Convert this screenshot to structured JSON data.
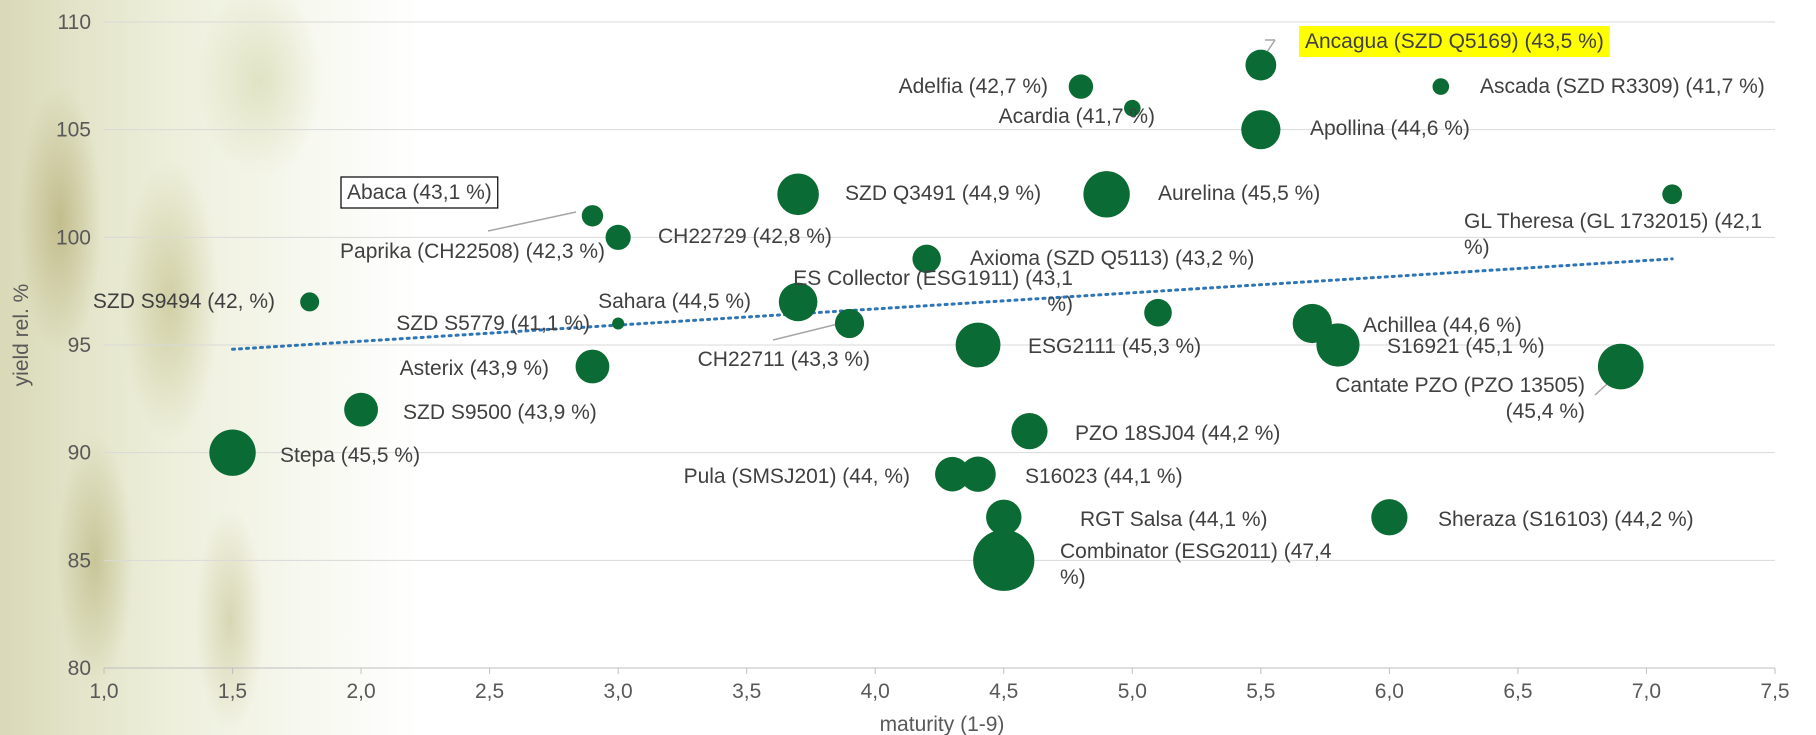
{
  "chart_data": {
    "type": "scatter",
    "variant": "bubble",
    "xlabel": "maturity (1-9)",
    "ylabel": "yield rel. %",
    "xlim": [
      1.0,
      7.5
    ],
    "ylim": [
      80,
      110
    ],
    "x_ticks": [
      "1,0",
      "1,5",
      "2,0",
      "2,5",
      "3,0",
      "3,5",
      "4,0",
      "4,5",
      "5,0",
      "5,5",
      "6,0",
      "6,5",
      "7,0",
      "7,5"
    ],
    "y_ticks": [
      "80",
      "85",
      "90",
      "95",
      "100",
      "105",
      "110"
    ],
    "grid": "horizontal",
    "bubble_color": "#0a6b34",
    "trendline": {
      "type": "linear",
      "style": "dotted",
      "color": "#2e75b6",
      "x": [
        1.5,
        7.1
      ],
      "y": [
        94.8,
        99.0
      ]
    },
    "points": [
      {
        "name": "Ancagua (SZD Q5169) (43,5 %)",
        "x": 5.5,
        "y": 108,
        "size": 43.5
      },
      {
        "name": "Adelfia (42,7 %)",
        "x": 4.8,
        "y": 107,
        "size": 42.7
      },
      {
        "name": "Ascada (SZD R3309) (41,7 %)",
        "x": 6.2,
        "y": 107,
        "size": 41.7
      },
      {
        "name": "Acardia (41,7 %)",
        "x": 5.0,
        "y": 106,
        "size": 41.7
      },
      {
        "name": "Apollina (44,6 %)",
        "x": 5.5,
        "y": 105,
        "size": 44.6
      },
      {
        "name": "Abaca (43,1 %)",
        "x": 2.1,
        "y": 102,
        "size": 43.1
      },
      {
        "name": "SZD Q3491 (44,9 %)",
        "x": 3.7,
        "y": 102,
        "size": 44.9
      },
      {
        "name": "Aurelina (45,5 %)",
        "x": 4.9,
        "y": 102,
        "size": 45.5
      },
      {
        "name": "GL Theresa (GL 1732015) (42,1 %)",
        "x": 7.1,
        "y": 102,
        "size": 42.1
      },
      {
        "name": "Paprika (CH22508) (42,3 %)",
        "x": 2.9,
        "y": 101,
        "size": 42.3
      },
      {
        "name": "CH22729 (42,8 %)",
        "x": 3.0,
        "y": 100,
        "size": 42.8
      },
      {
        "name": "Axioma (SZD Q5113) (43,2 %)",
        "x": 4.2,
        "y": 99,
        "size": 43.2
      },
      {
        "name": "SZD S9494 (42, %)",
        "x": 1.8,
        "y": 97,
        "size": 42.0
      },
      {
        "name": "Sahara (44,5 %)",
        "x": 3.7,
        "y": 97,
        "size": 44.5
      },
      {
        "name": "ES Collector (ESG1911) (43,1 %)",
        "x": 5.1,
        "y": 96.5,
        "size": 43.1
      },
      {
        "name": "SZD S5779 (41,1 %)",
        "x": 3.0,
        "y": 96,
        "size": 41.1
      },
      {
        "name": "CH22711 (43,3 %)",
        "x": 3.9,
        "y": 96,
        "size": 43.3
      },
      {
        "name": "Achillea (44,6 %)",
        "x": 5.7,
        "y": 96,
        "size": 44.6
      },
      {
        "name": "ESG2111 (45,3 %)",
        "x": 4.4,
        "y": 95,
        "size": 45.3
      },
      {
        "name": "S16921 (45,1 %)",
        "x": 5.8,
        "y": 95,
        "size": 45.1
      },
      {
        "name": "Asterix (43,9 %)",
        "x": 2.9,
        "y": 94,
        "size": 43.9
      },
      {
        "name": "Cantate PZO (PZO 13505) (45,4 %)",
        "x": 6.9,
        "y": 94,
        "size": 45.4
      },
      {
        "name": "SZD S9500 (43,9 %)",
        "x": 2.0,
        "y": 92,
        "size": 43.9
      },
      {
        "name": "PZO 18SJ04 (44,2 %)",
        "x": 4.6,
        "y": 91,
        "size": 44.2
      },
      {
        "name": "Stepa (45,5 %)",
        "x": 1.5,
        "y": 90,
        "size": 45.5
      },
      {
        "name": "Pula (SMSJ201) (44, %)",
        "x": 4.3,
        "y": 89,
        "size": 44.0
      },
      {
        "name": "S16023 (44,1 %)",
        "x": 4.4,
        "y": 89,
        "size": 44.1
      },
      {
        "name": "RGT Salsa (44,1 %)",
        "x": 4.5,
        "y": 87,
        "size": 44.1
      },
      {
        "name": "Sheraza (S16103) (44,2 %)",
        "x": 6.0,
        "y": 87,
        "size": 44.2
      },
      {
        "name": "Combinator (ESG2011) (47,4 %)",
        "x": 4.5,
        "y": 85,
        "size": 47.4
      }
    ],
    "labels": [
      {
        "lines": [
          "Ancagua (SZD Q5169) (43,5 %)"
        ],
        "style": "highlight",
        "highlight_color": "#ffff00"
      },
      {
        "lines": [
          "Adelfia (42,7 %)"
        ]
      },
      {
        "lines": [
          "Ascada (SZD R3309) (41,7 %)"
        ]
      },
      {
        "lines": [
          "Acardia (41,7 %)"
        ]
      },
      {
        "lines": [
          "Apollina (44,6 %)"
        ]
      },
      {
        "lines": [
          "Abaca (43,1 %)"
        ],
        "style": "boxed"
      },
      {
        "lines": [
          "SZD Q3491 (44,9 %)"
        ]
      },
      {
        "lines": [
          "Aurelina (45,5 %)"
        ]
      },
      {
        "lines": [
          "GL Theresa (GL 1732015) (42,1",
          "%)"
        ]
      },
      {
        "lines": [
          "Paprika (CH22508) (42,3 %)"
        ]
      },
      {
        "lines": [
          "CH22729 (42,8 %)"
        ]
      },
      {
        "lines": [
          "Axioma (SZD Q5113) (43,2 %)"
        ]
      },
      {
        "lines": [
          "SZD S9494 (42,  %)"
        ]
      },
      {
        "lines": [
          "Sahara (44,5 %)"
        ]
      },
      {
        "lines": [
          "ES Collector (ESG1911) (43,1",
          "%)"
        ]
      },
      {
        "lines": [
          "SZD S5779 (41,1 %)"
        ]
      },
      {
        "lines": [
          "CH22711 (43,3 %)"
        ]
      },
      {
        "lines": [
          "Achillea (44,6 %)"
        ]
      },
      {
        "lines": [
          "ESG2111 (45,3 %)"
        ]
      },
      {
        "lines": [
          "S16921 (45,1 %)"
        ]
      },
      {
        "lines": [
          "Asterix (43,9 %)"
        ]
      },
      {
        "lines": [
          "Cantate PZO (PZO 13505)",
          "(45,4 %)"
        ]
      },
      {
        "lines": [
          "SZD S9500 (43,9 %)"
        ]
      },
      {
        "lines": [
          "PZO 18SJ04 (44,2 %)"
        ]
      },
      {
        "lines": [
          "Stepa (45,5 %)"
        ]
      },
      {
        "lines": [
          "Pula (SMSJ201) (44,  %)"
        ]
      },
      {
        "lines": [
          "S16023 (44,1 %)"
        ]
      },
      {
        "lines": [
          "RGT Salsa (44,1 %)"
        ]
      },
      {
        "lines": [
          "Sheraza (S16103) (44,2 %)"
        ]
      },
      {
        "lines": [
          "Combinator (ESG2011) (47,4",
          "%)"
        ]
      }
    ]
  }
}
